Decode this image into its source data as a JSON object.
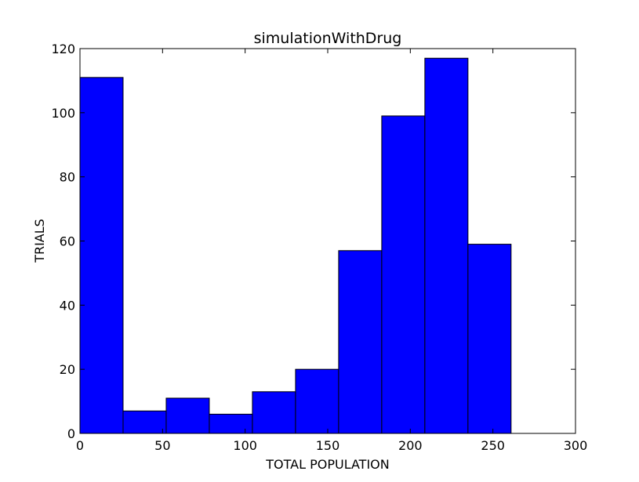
{
  "chart_data": {
    "type": "bar",
    "title": "simulationWithDrug",
    "xlabel": "TOTAL POPULATION",
    "ylabel": "TRIALS",
    "xlim": [
      0,
      300
    ],
    "ylim": [
      0,
      120
    ],
    "xticks": [
      0,
      50,
      100,
      150,
      200,
      250,
      300
    ],
    "yticks": [
      0,
      20,
      40,
      60,
      80,
      100,
      120
    ],
    "bin_edges": [
      0,
      26.1,
      52.2,
      78.3,
      104.4,
      130.5,
      156.6,
      182.7,
      208.8,
      234.9,
      261
    ],
    "values": [
      111,
      7,
      11,
      6,
      13,
      20,
      57,
      99,
      117,
      59
    ],
    "grid": false,
    "bar_color": "#0000ff",
    "edge_color": "#000000"
  }
}
